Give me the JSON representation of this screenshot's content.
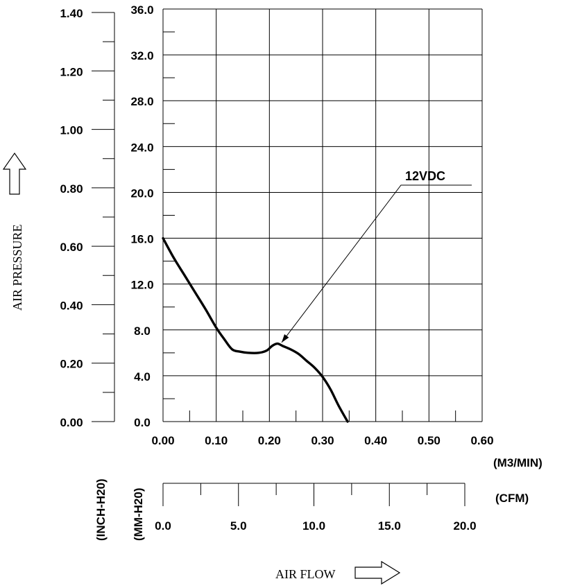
{
  "chart_data": {
    "type": "line",
    "xlabel": "AIR FLOW",
    "ylabel": "AIR PRESSURE",
    "x_unit_primary": "(M3/MIN)",
    "x_unit_secondary": "(CFM)",
    "y_unit_primary": "(MM-H20)",
    "y_unit_secondary": "(INCH-H20)",
    "xlim": [
      0,
      0.6
    ],
    "ylim": [
      0,
      36
    ],
    "x_ticks": [
      "0.00",
      "0.10",
      "0.20",
      "0.30",
      "0.40",
      "0.50",
      "0.60"
    ],
    "y_ticks": [
      "0.0",
      "4.0",
      "8.0",
      "12.0",
      "16.0",
      "20.0",
      "24.0",
      "28.0",
      "32.0",
      "36.0"
    ],
    "x2_ticks": [
      "0.0",
      "5.0",
      "10.0",
      "15.0",
      "20.0"
    ],
    "y2_ticks": [
      "0.00",
      "0.20",
      "0.40",
      "0.60",
      "0.80",
      "1.00",
      "1.20",
      "1.40"
    ],
    "grid": true,
    "series": [
      {
        "name": "12VDC",
        "x": [
          0.0,
          0.02,
          0.04,
          0.06,
          0.08,
          0.1,
          0.115,
          0.13,
          0.145,
          0.16,
          0.18,
          0.195,
          0.205,
          0.215,
          0.225,
          0.24,
          0.255,
          0.27,
          0.285,
          0.3,
          0.315,
          0.33,
          0.347
        ],
        "y": [
          16.0,
          14.3,
          12.8,
          11.3,
          9.8,
          8.2,
          7.2,
          6.3,
          6.1,
          6.0,
          6.0,
          6.2,
          6.6,
          6.8,
          6.6,
          6.3,
          5.9,
          5.3,
          4.7,
          3.9,
          2.8,
          1.4,
          0.0
        ]
      }
    ],
    "annotations": [
      {
        "text": "12VDC",
        "x": 0.223,
        "y": 6.9
      }
    ]
  }
}
